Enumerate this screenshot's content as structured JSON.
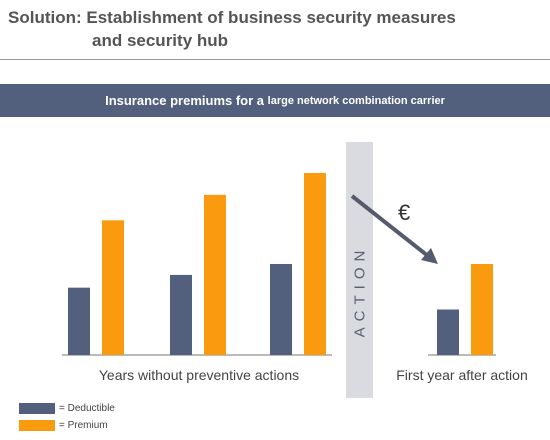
{
  "header": {
    "title_line1": "Solution: Establishment of business security measures",
    "title_line2": "and security hub"
  },
  "banner": {
    "text_large": "Insurance premiums for a ",
    "text_small": "large network combination carrier"
  },
  "colors": {
    "deductible": "#52607e",
    "premium": "#f99a0f",
    "banner": "#52607e",
    "action_band": "#d9dbe0",
    "arrow": "#555b6d"
  },
  "chart_data": {
    "type": "bar",
    "title": "Insurance premiums for a large network combination carrier",
    "y_scale": "relative (no axis printed)",
    "ylim": [
      0,
      100
    ],
    "groups": [
      {
        "period": "Years without preventive actions",
        "deductible": 37,
        "premium": 74
      },
      {
        "period": "Years without preventive actions",
        "deductible": 44,
        "premium": 88
      },
      {
        "period": "Years without preventive actions",
        "deductible": 50,
        "premium": 100
      },
      {
        "period": "First year after action",
        "deductible": 25,
        "premium": 50
      }
    ],
    "category_labels": [
      "Years without preventive actions",
      "First year after action"
    ],
    "series": [
      {
        "name": "= Deductible",
        "key": "deductible"
      },
      {
        "name": "= Premium",
        "key": "premium"
      }
    ],
    "annotations": {
      "action_band_label": "ACTION",
      "arrow_symbol": "€"
    },
    "legend_position": "bottom-left",
    "grid": false
  }
}
